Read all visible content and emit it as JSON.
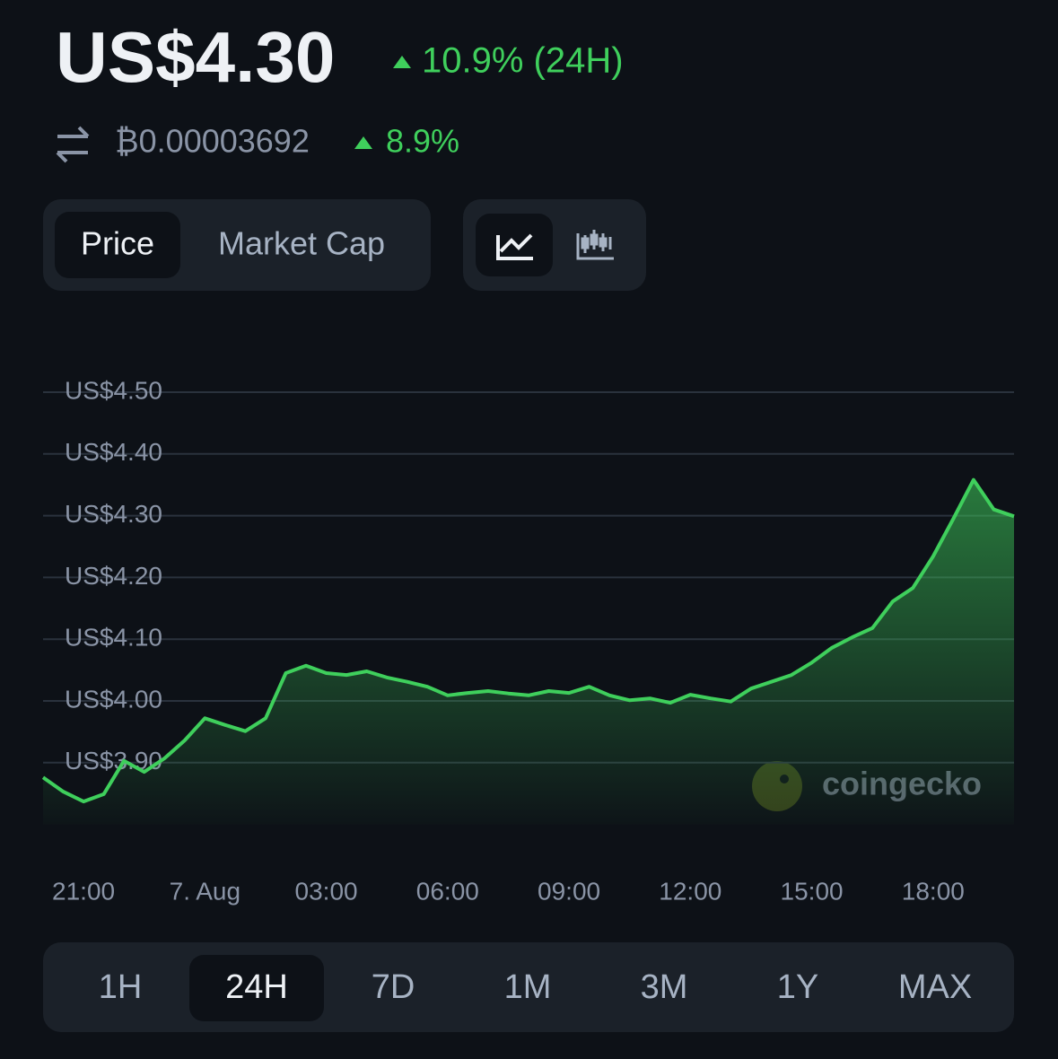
{
  "header": {
    "price": "US$4.30",
    "change_24h": "10.9% (24H)",
    "btc_price": "₿0.00003692",
    "btc_change": "8.9%"
  },
  "tabs": {
    "items": [
      "Price",
      "Market Cap"
    ],
    "selected": 0
  },
  "chart_data": {
    "type": "area",
    "x": [
      20,
      20.5,
      21,
      21.5,
      22,
      22.5,
      23,
      23.5,
      24,
      24.5,
      25,
      25.5,
      26,
      26.5,
      27,
      27.5,
      28,
      28.5,
      29,
      29.5,
      30,
      30.5,
      31,
      31.5,
      32,
      32.5,
      33,
      33.5,
      34,
      34.5,
      35,
      35.5,
      36,
      36.5,
      37,
      37.5,
      38,
      38.5,
      39,
      39.5,
      40,
      40.5,
      41,
      41.5,
      42,
      42.5,
      43,
      43.5,
      44
    ],
    "series": [
      {
        "color": "#3fcf5c",
        "values": [
          3.876,
          3.853,
          3.837,
          3.849,
          3.903,
          3.885,
          3.907,
          3.936,
          3.972,
          3.961,
          3.951,
          3.972,
          4.045,
          4.057,
          4.045,
          4.042,
          4.048,
          4.038,
          4.031,
          4.023,
          4.009,
          4.013,
          4.016,
          4.012,
          4.009,
          4.016,
          4.013,
          4.023,
          4.009,
          4.001,
          4.004,
          3.997,
          4.01,
          4.004,
          3.999,
          4.02,
          4.031,
          4.042,
          4.062,
          4.086,
          4.103,
          4.118,
          4.161,
          4.183,
          4.234,
          4.295,
          4.358,
          4.31,
          4.299
        ]
      }
    ],
    "xlim": [
      20,
      44
    ],
    "xticks": [
      {
        "value": 21,
        "label": "21:00"
      },
      {
        "value": 24,
        "label": "7. Aug"
      },
      {
        "value": 27,
        "label": "03:00"
      },
      {
        "value": 30,
        "label": "06:00"
      },
      {
        "value": 33,
        "label": "09:00"
      },
      {
        "value": 36,
        "label": "12:00"
      },
      {
        "value": 39,
        "label": "15:00"
      },
      {
        "value": 42,
        "label": "18:00"
      }
    ],
    "ylim": [
      3.8,
      4.5
    ],
    "yticks": [
      {
        "value": 3.9,
        "label": "US$3.90"
      },
      {
        "value": 4.0,
        "label": "US$4.00"
      },
      {
        "value": 4.1,
        "label": "US$4.10"
      },
      {
        "value": 4.2,
        "label": "US$4.20"
      },
      {
        "value": 4.3,
        "label": "US$4.30"
      },
      {
        "value": 4.4,
        "label": "US$4.40"
      },
      {
        "value": 4.5,
        "label": "US$4.50"
      }
    ],
    "grid": true
  },
  "watermark": "coingecko",
  "ranges": {
    "items": [
      "1H",
      "24H",
      "7D",
      "1M",
      "3M",
      "1Y",
      "MAX"
    ],
    "selected": 1
  }
}
